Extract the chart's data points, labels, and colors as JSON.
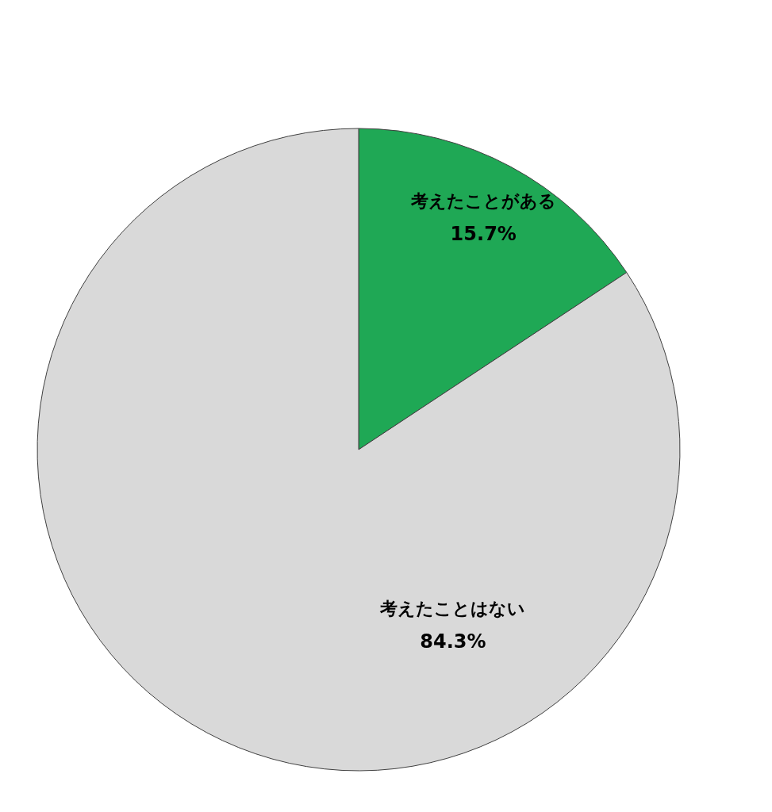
{
  "chart_data": {
    "type": "pie",
    "categories": [
      "考えたことがある",
      "考えたことはない"
    ],
    "values": [
      15.7,
      84.3
    ],
    "colors": [
      "#1fa855",
      "#d9d9d9"
    ],
    "value_labels": [
      "15.7%",
      "84.3%"
    ],
    "legend": false
  }
}
